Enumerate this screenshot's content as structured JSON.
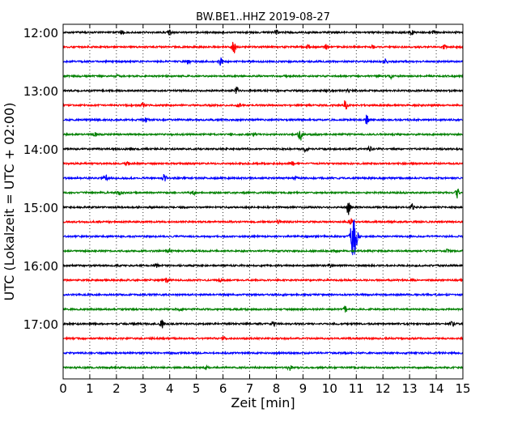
{
  "chart_data": {
    "type": "line",
    "title": "BW.BE1..HHZ 2019-08-27",
    "xlabel": "Zeit  [min]",
    "ylabel": "UTC (Lokalzeit = UTC + 02:00)",
    "xlim": [
      0,
      15
    ],
    "x_ticks": [
      "0",
      "1",
      "2",
      "3",
      "4",
      "5",
      "6",
      "7",
      "8",
      "9",
      "10",
      "11",
      "12",
      "13",
      "14",
      "15"
    ],
    "y_tick_labels": [
      "12:00",
      "13:00",
      "14:00",
      "15:00",
      "16:00",
      "17:00"
    ],
    "grid": "vertical dotted lines at each minute",
    "line_colors": [
      "#000000",
      "#ff0000",
      "#0000ff",
      "#008000"
    ],
    "traces": [
      {
        "start": "12:00",
        "events": [
          [
            2.2,
            0.35
          ],
          [
            4.0,
            0.25
          ],
          [
            8.0,
            0.25
          ],
          [
            13.1,
            0.35
          ],
          [
            13.9,
            0.3
          ]
        ]
      },
      {
        "start": "12:15",
        "events": [
          [
            6.4,
            0.9
          ],
          [
            9.2,
            0.35
          ],
          [
            9.9,
            0.4
          ],
          [
            11.6,
            0.3
          ],
          [
            14.3,
            0.3
          ]
        ]
      },
      {
        "start": "12:30",
        "events": [
          [
            4.7,
            0.3
          ],
          [
            5.9,
            0.5
          ],
          [
            12.1,
            0.35
          ]
        ]
      },
      {
        "start": "12:45",
        "events": [
          [
            2.0,
            0.2
          ],
          [
            12.3,
            0.3
          ]
        ]
      },
      {
        "start": "13:00",
        "events": [
          [
            6.5,
            0.5
          ],
          [
            9.9,
            0.3
          ],
          [
            10.7,
            0.25
          ]
        ]
      },
      {
        "start": "13:15",
        "events": [
          [
            3.0,
            0.25
          ],
          [
            6.6,
            0.3
          ],
          [
            10.6,
            0.8
          ]
        ]
      },
      {
        "start": "13:30",
        "events": [
          [
            3.1,
            0.35
          ],
          [
            11.4,
            0.6
          ]
        ]
      },
      {
        "start": "13:45",
        "events": [
          [
            1.2,
            0.25
          ],
          [
            7.2,
            0.2
          ],
          [
            8.9,
            0.9
          ]
        ]
      },
      {
        "start": "14:00",
        "events": [
          [
            9.1,
            0.35
          ],
          [
            11.5,
            0.3
          ]
        ]
      },
      {
        "start": "14:15",
        "events": [
          [
            2.4,
            0.25
          ],
          [
            8.6,
            0.3
          ]
        ]
      },
      {
        "start": "14:30",
        "events": [
          [
            1.6,
            0.35
          ],
          [
            3.8,
            0.5
          ],
          [
            8.7,
            0.25
          ]
        ]
      },
      {
        "start": "14:45",
        "events": [
          [
            2.1,
            0.3
          ],
          [
            4.9,
            0.25
          ],
          [
            14.8,
            0.8
          ]
        ]
      },
      {
        "start": "15:00",
        "events": [
          [
            10.7,
            1.0
          ],
          [
            13.1,
            0.4
          ]
        ]
      },
      {
        "start": "15:15",
        "events": [
          [
            8.1,
            0.25
          ],
          [
            10.8,
            0.4
          ]
        ]
      },
      {
        "start": "15:30",
        "events": [
          [
            10.9,
            3.0
          ]
        ]
      },
      {
        "start": "15:45",
        "events": [
          [
            4.0,
            0.2
          ],
          [
            14.4,
            0.3
          ]
        ]
      },
      {
        "start": "16:00",
        "events": [
          [
            3.5,
            0.25
          ],
          [
            10.0,
            0.25
          ]
        ]
      },
      {
        "start": "16:15",
        "events": [
          [
            3.9,
            0.45
          ],
          [
            5.9,
            0.25
          ]
        ]
      },
      {
        "start": "16:30",
        "events": [
          [
            8.3,
            0.2
          ]
        ]
      },
      {
        "start": "16:45",
        "events": [
          [
            4.4,
            0.2
          ],
          [
            10.6,
            0.4
          ]
        ]
      },
      {
        "start": "17:00",
        "events": [
          [
            3.7,
            0.6
          ],
          [
            7.9,
            0.3
          ],
          [
            14.6,
            0.35
          ]
        ]
      },
      {
        "start": "17:15",
        "events": [
          [
            6.0,
            0.2
          ]
        ]
      },
      {
        "start": "17:30",
        "events": []
      },
      {
        "start": "17:45",
        "events": [
          [
            5.4,
            0.25
          ],
          [
            8.5,
            0.4
          ]
        ]
      }
    ]
  }
}
